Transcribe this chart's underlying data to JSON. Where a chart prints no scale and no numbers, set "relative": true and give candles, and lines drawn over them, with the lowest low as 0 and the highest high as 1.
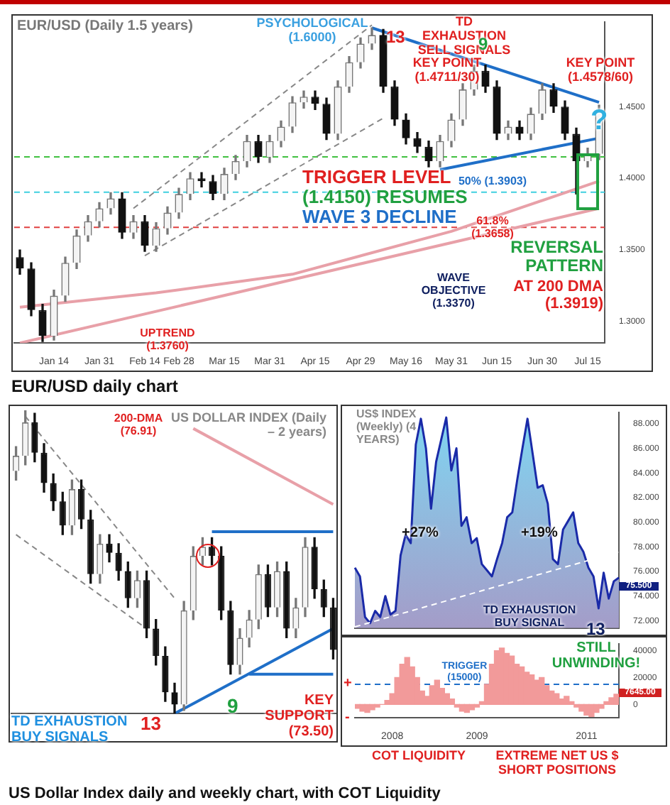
{
  "chart_data": [
    {
      "type": "candlestick",
      "title": "EUR/USD (Daily 1.5 years)",
      "categories": [
        null,
        null,
        null,
        "Jan 14",
        null,
        null,
        null,
        "Jan 31",
        null,
        null,
        null,
        "Feb 14",
        null,
        null,
        "Feb 28",
        null,
        null,
        null,
        "Mar 15",
        null,
        null,
        null,
        "Mar 31",
        null,
        null,
        null,
        "Apr 15",
        null,
        null,
        null,
        "Apr 29",
        null,
        null,
        null,
        "May 16",
        null,
        null,
        null,
        "May 31",
        null,
        null,
        null,
        "Jun 15",
        null,
        null,
        null,
        "Jun 30",
        null,
        null,
        null,
        "Jul 15",
        null
      ],
      "ohlc": [
        [
          1.345,
          1.35,
          1.333,
          1.337
        ],
        [
          1.337,
          1.341,
          1.304,
          1.308
        ],
        [
          1.308,
          1.312,
          1.286,
          1.29
        ],
        [
          1.29,
          1.322,
          1.287,
          1.318
        ],
        [
          1.318,
          1.345,
          1.314,
          1.341
        ],
        [
          1.341,
          1.364,
          1.337,
          1.36
        ],
        [
          1.36,
          1.374,
          1.356,
          1.37
        ],
        [
          1.37,
          1.383,
          1.366,
          1.379
        ],
        [
          1.379,
          1.39,
          1.375,
          1.386
        ],
        [
          1.386,
          1.39,
          1.358,
          1.362
        ],
        [
          1.362,
          1.374,
          1.358,
          1.37
        ],
        [
          1.37,
          1.374,
          1.349,
          1.353
        ],
        [
          1.353,
          1.369,
          1.349,
          1.365
        ],
        [
          1.365,
          1.38,
          1.361,
          1.376
        ],
        [
          1.376,
          1.393,
          1.372,
          1.389
        ],
        [
          1.389,
          1.404,
          1.385,
          1.4
        ],
        [
          1.4,
          1.404,
          1.394,
          1.398
        ],
        [
          1.398,
          1.402,
          1.385,
          1.389
        ],
        [
          1.389,
          1.407,
          1.385,
          1.403
        ],
        [
          1.403,
          1.416,
          1.399,
          1.412
        ],
        [
          1.412,
          1.43,
          1.408,
          1.426
        ],
        [
          1.426,
          1.43,
          1.411,
          1.415
        ],
        [
          1.415,
          1.43,
          1.411,
          1.426
        ],
        [
          1.426,
          1.44,
          1.422,
          1.436
        ],
        [
          1.436,
          1.457,
          1.432,
          1.453
        ],
        [
          1.453,
          1.461,
          1.449,
          1.457
        ],
        [
          1.457,
          1.461,
          1.448,
          1.452
        ],
        [
          1.452,
          1.456,
          1.427,
          1.431
        ],
        [
          1.431,
          1.468,
          1.427,
          1.464
        ],
        [
          1.464,
          1.485,
          1.46,
          1.481
        ],
        [
          1.481,
          1.498,
          1.477,
          1.494
        ],
        [
          1.494,
          1.505,
          1.49,
          1.5
        ],
        [
          1.5,
          1.504,
          1.46,
          1.464
        ],
        [
          1.464,
          1.468,
          1.437,
          1.441
        ],
        [
          1.441,
          1.445,
          1.424,
          1.428
        ],
        [
          1.428,
          1.432,
          1.418,
          1.422
        ],
        [
          1.422,
          1.426,
          1.408,
          1.412
        ],
        [
          1.412,
          1.43,
          1.408,
          1.426
        ],
        [
          1.426,
          1.445,
          1.422,
          1.441
        ],
        [
          1.441,
          1.466,
          1.437,
          1.462
        ],
        [
          1.462,
          1.479,
          1.458,
          1.475
        ],
        [
          1.475,
          1.479,
          1.46,
          1.464
        ],
        [
          1.464,
          1.468,
          1.427,
          1.431
        ],
        [
          1.431,
          1.44,
          1.427,
          1.436
        ],
        [
          1.436,
          1.44,
          1.427,
          1.431
        ],
        [
          1.431,
          1.449,
          1.427,
          1.445
        ],
        [
          1.445,
          1.466,
          1.441,
          1.462
        ],
        [
          1.462,
          1.466,
          1.446,
          1.45
        ],
        [
          1.45,
          1.454,
          1.427,
          1.431
        ],
        [
          1.431,
          1.435,
          1.389,
          1.412
        ],
        [
          1.412,
          1.421,
          1.408,
          1.417
        ],
        [
          1.417,
          1.451,
          1.413,
          1.447
        ]
      ],
      "series": [
        {
          "type": "line",
          "color": "#e8a0a8",
          "values": [
            1.31,
            null,
            null,
            null,
            null,
            null,
            null,
            null,
            null,
            null,
            null,
            null,
            1.32,
            null,
            null,
            null,
            null,
            null,
            null,
            null,
            null,
            null,
            null,
            null,
            1.333,
            null,
            null,
            null,
            null,
            null,
            null,
            null,
            null,
            null,
            null,
            null,
            null,
            null,
            1.363,
            null,
            null,
            null,
            null,
            null,
            null,
            null,
            null,
            null,
            null,
            null,
            null,
            1.398
          ]
        },
        {
          "type": "line",
          "color": "#e8a0a8",
          "values": [
            1.285,
            null,
            null,
            null,
            null,
            null,
            null,
            null,
            null,
            null,
            null,
            null,
            null,
            null,
            null,
            null,
            null,
            null,
            null,
            null,
            null,
            null,
            null,
            null,
            null,
            null,
            null,
            null,
            null,
            null,
            null,
            null,
            null,
            null,
            null,
            null,
            null,
            null,
            null,
            null,
            null,
            null,
            null,
            null,
            null,
            null,
            null,
            null,
            null,
            null,
            null,
            1.379
          ]
        },
        {
          "type": "line",
          "color": "#1f6fc8",
          "values": [
            null,
            null,
            null,
            null,
            null,
            null,
            null,
            null,
            null,
            null,
            null,
            null,
            null,
            null,
            null,
            null,
            null,
            null,
            null,
            null,
            null,
            null,
            null,
            null,
            null,
            null,
            null,
            null,
            null,
            null,
            null,
            1.505,
            null,
            null,
            null,
            null,
            null,
            null,
            null,
            null,
            null,
            null,
            null,
            null,
            null,
            null,
            null,
            null,
            null,
            null,
            null,
            1.453
          ]
        },
        {
          "type": "line",
          "color": "#1f6fc8",
          "values": [
            null,
            null,
            null,
            null,
            null,
            null,
            null,
            null,
            null,
            null,
            null,
            null,
            null,
            null,
            null,
            null,
            null,
            null,
            null,
            null,
            null,
            null,
            null,
            null,
            null,
            null,
            null,
            null,
            null,
            null,
            null,
            null,
            null,
            null,
            null,
            null,
            null,
            1.406,
            null,
            null,
            null,
            null,
            null,
            null,
            null,
            null,
            null,
            null,
            null,
            null,
            null,
            1.428
          ]
        },
        {
          "type": "line",
          "color": "#888888",
          "line_style": "dashed",
          "values": [
            null,
            null,
            null,
            null,
            null,
            null,
            null,
            null,
            null,
            null,
            1.379,
            null,
            null,
            null,
            null,
            null,
            null,
            null,
            null,
            null,
            null,
            null,
            null,
            null,
            null,
            null,
            null,
            null,
            null,
            null,
            null,
            1.507,
            null,
            null,
            null,
            null,
            null,
            null,
            null,
            null,
            null,
            null,
            null,
            null,
            null,
            null,
            null,
            null,
            null,
            null,
            null,
            null
          ]
        },
        {
          "type": "line",
          "color": "#888888",
          "line_style": "dashed",
          "values": [
            null,
            null,
            null,
            null,
            null,
            null,
            null,
            null,
            null,
            null,
            null,
            1.346,
            null,
            null,
            null,
            null,
            null,
            null,
            null,
            null,
            null,
            null,
            null,
            null,
            null,
            null,
            null,
            null,
            null,
            null,
            null,
            null,
            1.442,
            null,
            null,
            null,
            null,
            null,
            null,
            null,
            null,
            null,
            null,
            null,
            null,
            null,
            null,
            null,
            null,
            null,
            null,
            null
          ]
        }
      ],
      "ylim": [
        1.285,
        1.509
      ],
      "yticks": [
        {
          "value": 1.3,
          "label": "1.3000"
        },
        {
          "value": 1.35,
          "label": "1.3500"
        },
        {
          "value": 1.4,
          "label": "1.4000"
        },
        {
          "value": 1.45,
          "label": "1.4500"
        }
      ],
      "ref_lines": [
        {
          "axis": "y",
          "value": 1.415,
          "color": "#40c040",
          "line_style": "dashed"
        },
        {
          "axis": "y",
          "value": 1.3903,
          "color": "#40d0e0",
          "line_style": "dashed"
        },
        {
          "axis": "y",
          "value": 1.3658,
          "color": "#e04040",
          "line_style": "dashed"
        }
      ],
      "annotations": [
        "PSYCHOLOGICAL (1.6000)",
        "TD EXHAUSTION SELL SIGNALS",
        "13",
        "9",
        "KEY POINT (1.4711/30)",
        "KEY POINT (1.4578/60)",
        "?",
        "TRIGGER LEVEL",
        "(1.4150) RESUMES",
        "WAVE 3 DECLINE",
        "50% (1.3903)",
        "61.8% (1.3658)",
        "WAVE OBJECTIVE (1.3370)",
        "REVERSAL PATTERN",
        "AT 200 DMA (1.3919)",
        "UPTREND (1.3760)",
        "EUR/USD daily chart"
      ]
    },
    {
      "type": "candlestick",
      "relative": true,
      "title": "US DOLLAR INDEX (Daily – 2 years)",
      "categories": [
        null,
        null,
        null,
        null,
        null,
        null,
        null,
        null,
        null,
        null,
        null,
        null,
        null,
        null,
        null,
        null,
        null,
        null,
        null,
        null,
        null,
        null,
        null,
        null,
        null,
        null,
        null,
        null,
        null,
        null,
        null,
        null,
        null,
        null,
        null
      ],
      "ohlc": [
        [
          0.8,
          0.88,
          0.77,
          0.85
        ],
        [
          0.85,
          1.0,
          0.82,
          0.96
        ],
        [
          0.96,
          0.99,
          0.83,
          0.86
        ],
        [
          0.86,
          0.89,
          0.73,
          0.76
        ],
        [
          0.76,
          0.79,
          0.67,
          0.7
        ],
        [
          0.7,
          0.73,
          0.59,
          0.62
        ],
        [
          0.62,
          0.77,
          0.59,
          0.74
        ],
        [
          0.74,
          0.77,
          0.61,
          0.64
        ],
        [
          0.64,
          0.67,
          0.43,
          0.46
        ],
        [
          0.46,
          0.59,
          0.43,
          0.56
        ],
        [
          0.56,
          0.59,
          0.5,
          0.53
        ],
        [
          0.53,
          0.56,
          0.44,
          0.47
        ],
        [
          0.47,
          0.5,
          0.35,
          0.38
        ],
        [
          0.38,
          0.47,
          0.35,
          0.44
        ],
        [
          0.44,
          0.47,
          0.25,
          0.28
        ],
        [
          0.28,
          0.31,
          0.16,
          0.19
        ],
        [
          0.19,
          0.22,
          0.04,
          0.07
        ],
        [
          0.07,
          0.1,
          0.0,
          0.03
        ],
        [
          0.03,
          0.37,
          0.01,
          0.34
        ],
        [
          0.34,
          0.55,
          0.31,
          0.52
        ],
        [
          0.52,
          0.58,
          0.49,
          0.55
        ],
        [
          0.55,
          0.58,
          0.49,
          0.52
        ],
        [
          0.52,
          0.55,
          0.31,
          0.34
        ],
        [
          0.34,
          0.37,
          0.13,
          0.16
        ],
        [
          0.16,
          0.28,
          0.13,
          0.25
        ],
        [
          0.25,
          0.34,
          0.22,
          0.31
        ],
        [
          0.31,
          0.49,
          0.28,
          0.46
        ],
        [
          0.46,
          0.49,
          0.32,
          0.35
        ],
        [
          0.35,
          0.5,
          0.32,
          0.47
        ],
        [
          0.47,
          0.5,
          0.25,
          0.28
        ],
        [
          0.28,
          0.38,
          0.25,
          0.35
        ],
        [
          0.35,
          0.58,
          0.32,
          0.55
        ],
        [
          0.55,
          0.58,
          0.38,
          0.41
        ],
        [
          0.41,
          0.44,
          0.32,
          0.35
        ],
        [
          0.35,
          0.38,
          0.18,
          0.21
        ]
      ],
      "series": [
        {
          "type": "line",
          "color": "#e8a0a8",
          "values": [
            null,
            null,
            null,
            null,
            null,
            null,
            null,
            null,
            null,
            null,
            null,
            null,
            null,
            null,
            null,
            null,
            null,
            null,
            null,
            0.94,
            null,
            null,
            null,
            null,
            null,
            null,
            null,
            null,
            null,
            null,
            null,
            null,
            null,
            null,
            0.69
          ]
        },
        {
          "type": "line",
          "color": "#1f6fc8",
          "values": [
            null,
            null,
            null,
            null,
            null,
            null,
            null,
            null,
            null,
            null,
            null,
            null,
            null,
            null,
            null,
            null,
            null,
            null,
            null,
            null,
            null,
            0.6,
            null,
            null,
            null,
            null,
            null,
            null,
            null,
            null,
            null,
            null,
            null,
            null,
            0.6
          ]
        },
        {
          "type": "line",
          "color": "#1f6fc8",
          "values": [
            null,
            null,
            null,
            null,
            null,
            null,
            null,
            null,
            null,
            null,
            null,
            null,
            null,
            null,
            null,
            null,
            null,
            null,
            null,
            null,
            null,
            null,
            null,
            null,
            null,
            0.13,
            null,
            null,
            null,
            null,
            null,
            null,
            null,
            null,
            0.13
          ]
        },
        {
          "type": "line",
          "color": "#1f6fc8",
          "values": [
            null,
            null,
            null,
            null,
            null,
            null,
            null,
            null,
            null,
            null,
            null,
            null,
            null,
            null,
            null,
            null,
            null,
            0.0,
            null,
            null,
            null,
            null,
            null,
            null,
            null,
            null,
            null,
            null,
            null,
            null,
            null,
            null,
            null,
            null,
            0.28
          ]
        },
        {
          "type": "line",
          "color": "#888888",
          "line_style": "dashed",
          "values": [
            null,
            0.98,
            null,
            null,
            null,
            null,
            null,
            null,
            null,
            null,
            null,
            null,
            null,
            null,
            null,
            null,
            null,
            0.38,
            null,
            null,
            null,
            null,
            null,
            null,
            null,
            null,
            null,
            null,
            null,
            null,
            null,
            null,
            null,
            null,
            null
          ]
        },
        {
          "type": "line",
          "color": "#888888",
          "line_style": "dashed",
          "values": [
            0.59,
            null,
            null,
            null,
            null,
            null,
            null,
            null,
            null,
            null,
            null,
            null,
            null,
            null,
            0.28,
            null,
            null,
            null,
            null,
            null,
            null,
            null,
            null,
            null,
            null,
            null,
            null,
            null,
            null,
            null,
            null,
            null,
            null,
            null,
            null
          ]
        }
      ],
      "annotations": [
        "200-DMA (76.91)",
        "TD EXHAUSTION BUY SIGNALS",
        "13",
        "9",
        "KEY SUPPORT (73.50)",
        "US Dollar Index daily and weekly chart, with COT Liquidity"
      ]
    },
    {
      "type": "area",
      "title": "US$ INDEX (Weekly) (4 YEARS)",
      "color": "#1a2aa8",
      "tick_labels": "y",
      "categories": [
        null,
        null,
        null,
        null,
        null,
        null,
        null,
        null,
        null,
        null,
        null,
        null,
        null,
        null,
        null,
        null,
        null,
        null,
        null,
        null,
        null,
        null,
        null,
        null,
        null,
        null,
        null,
        null,
        null,
        null,
        null,
        null,
        null,
        null,
        null,
        null,
        null,
        null,
        null,
        null,
        null,
        null,
        null,
        null,
        null,
        null,
        null,
        null,
        null,
        null,
        null,
        null,
        null
      ],
      "values": [
        76.3,
        75.6,
        72.3,
        71.8,
        72.8,
        72.3,
        74.0,
        72.5,
        72.8,
        77.3,
        79.0,
        78.3,
        86.3,
        88.4,
        86.0,
        81.1,
        84.9,
        86.7,
        88.5,
        84.2,
        86.0,
        79.7,
        80.4,
        78.3,
        78.7,
        76.6,
        76.1,
        75.6,
        77.0,
        78.3,
        80.4,
        80.8,
        83.5,
        86.0,
        88.4,
        85.6,
        82.8,
        83.0,
        81.5,
        77.0,
        76.6,
        79.4,
        80.1,
        80.8,
        78.3,
        77.6,
        76.3,
        75.6,
        73.0,
        75.9,
        73.8,
        75.2,
        75.5
      ],
      "series": [
        {
          "type": "line",
          "color": "#ffffff",
          "line_style": "dashed",
          "values": [
            71.5,
            null,
            null,
            null,
            null,
            null,
            null,
            null,
            null,
            null,
            null,
            null,
            null,
            null,
            null,
            null,
            null,
            null,
            null,
            null,
            null,
            null,
            null,
            null,
            null,
            null,
            null,
            null,
            null,
            null,
            null,
            null,
            null,
            null,
            null,
            null,
            null,
            null,
            null,
            null,
            null,
            null,
            null,
            null,
            null,
            null,
            null,
            null,
            null,
            null,
            null,
            null,
            77.6
          ]
        }
      ],
      "ylim": [
        71.4,
        88.9
      ],
      "yticks": [
        {
          "value": 72,
          "label": "72.000"
        },
        {
          "value": 74,
          "label": "74.000"
        },
        {
          "value": 76,
          "label": "76.000"
        },
        {
          "value": 78,
          "label": "78.000"
        },
        {
          "value": 80,
          "label": "80.000"
        },
        {
          "value": 82,
          "label": "82.000"
        },
        {
          "value": 84,
          "label": "84.000"
        },
        {
          "value": 86,
          "label": "86.000"
        },
        {
          "value": 88,
          "label": "88.000"
        }
      ],
      "annotations": [
        "+27%",
        "+19%",
        "TD EXHAUSTION BUY SIGNAL",
        "13",
        "75.500"
      ]
    },
    {
      "type": "bar",
      "color": "#f29a9a",
      "categories": [
        null,
        null,
        null,
        null,
        null,
        null,
        null,
        "2008",
        null,
        null,
        null,
        null,
        null,
        null,
        null,
        null,
        null,
        null,
        null,
        null,
        null,
        null,
        null,
        null,
        "2009",
        null,
        null,
        null,
        null,
        null,
        null,
        null,
        null,
        null,
        null,
        null,
        null,
        null,
        null,
        null,
        null,
        null,
        null,
        null,
        null,
        null,
        "2011",
        null,
        null,
        null,
        null,
        null,
        null
      ],
      "values": [
        -3000,
        -5000,
        -6000,
        -4000,
        -2000,
        0,
        3000,
        8000,
        20000,
        30000,
        35000,
        28000,
        20000,
        10000,
        6000,
        14000,
        18000,
        12000,
        8000,
        4000,
        -2000,
        -5000,
        -6000,
        -4000,
        -2000,
        2000,
        15000,
        30000,
        40000,
        42000,
        38000,
        36000,
        30000,
        28000,
        24000,
        22000,
        18000,
        20000,
        14000,
        10000,
        8000,
        4000,
        6000,
        2000,
        -2000,
        -5000,
        -8000,
        -9000,
        -6000,
        -3000,
        2000,
        5000,
        7645
      ],
      "ylim": [
        -10000,
        45000
      ],
      "yticks": [
        0,
        20000,
        40000
      ],
      "ref_lines": [
        {
          "axis": "y",
          "value": 15000,
          "label": "TRIGGER (15000)",
          "color": "#1f6fc8",
          "line_style": "dashed"
        }
      ],
      "annotations": [
        "+",
        "-",
        "COT LIQUIDITY",
        "EXTREME NET US $ SHORT POSITIONS",
        "STILL UNWINDING!",
        "7645.00"
      ]
    }
  ]
}
